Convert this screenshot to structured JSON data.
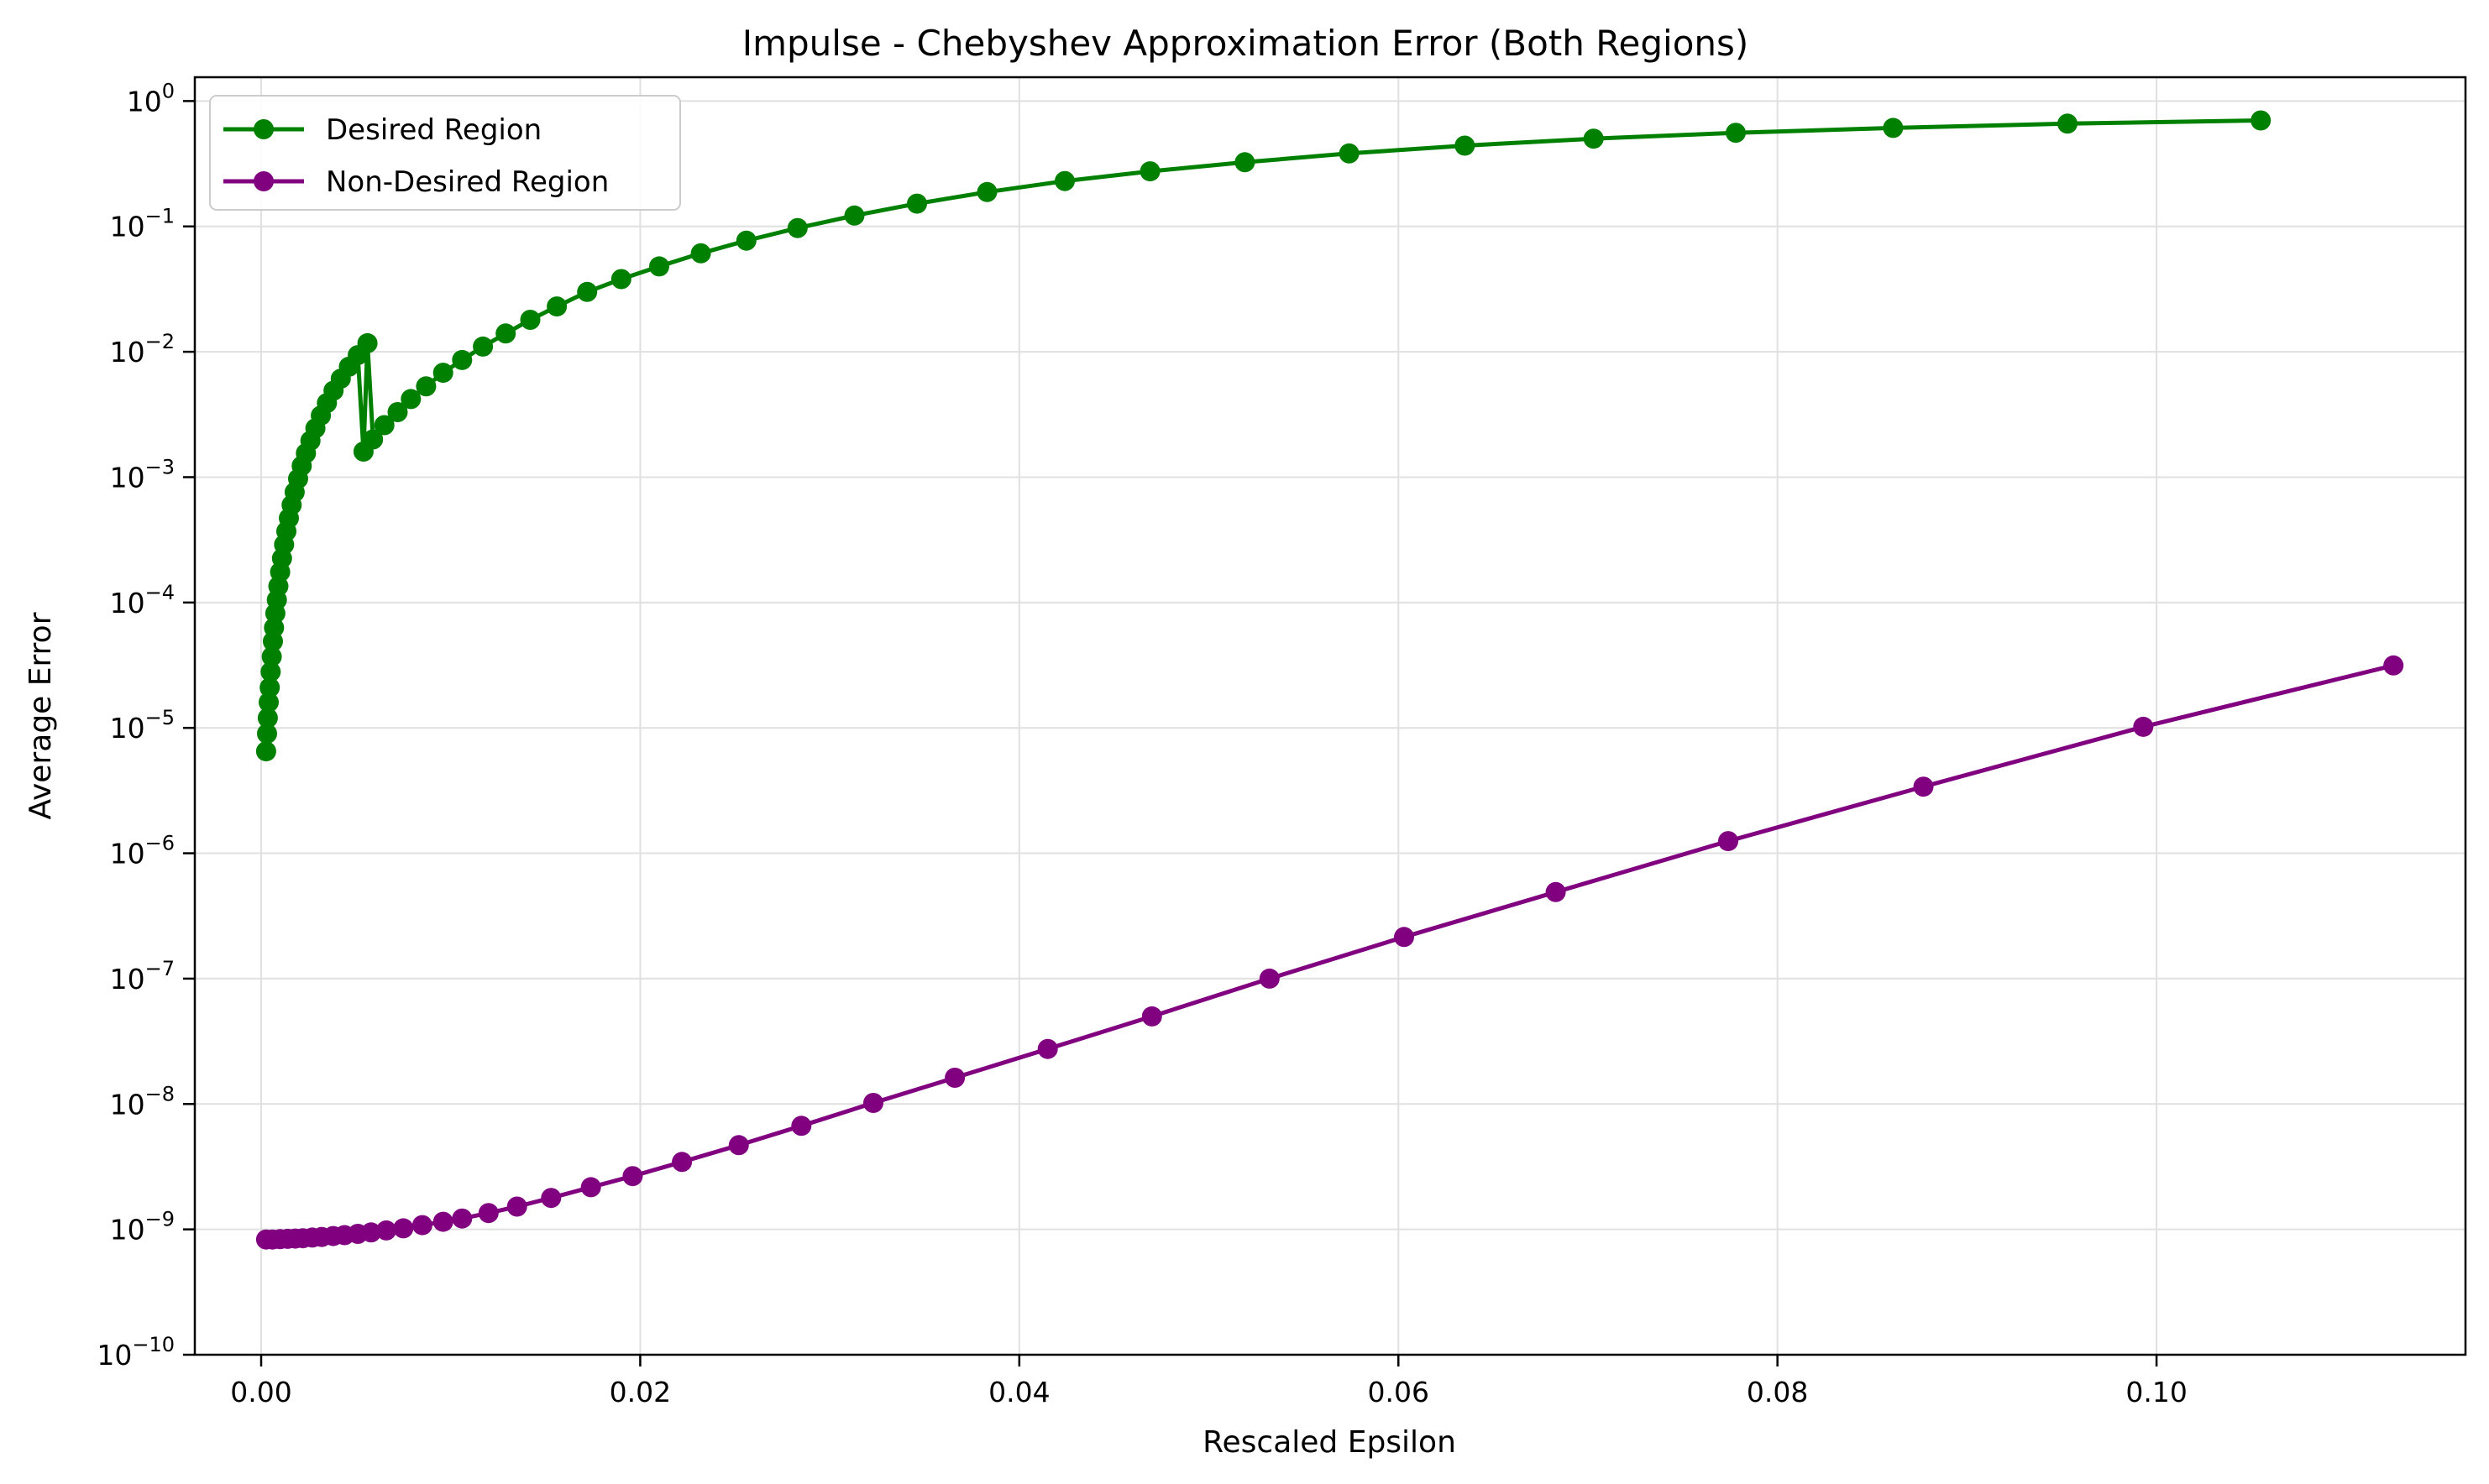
{
  "chart_data": {
    "type": "line",
    "title": "Impulse - Chebyshev Approximation Error (Both Regions)",
    "xlabel": "Rescaled Epsilon",
    "ylabel": "Average Error",
    "xlim": [
      -0.0035,
      0.1163
    ],
    "ylim_exponents": [
      -10,
      0.19
    ],
    "yscale": "log",
    "grid": true,
    "legend_position": "top-left",
    "x_ticks": [
      {
        "value": 0.0,
        "label": "0.00"
      },
      {
        "value": 0.02,
        "label": "0.02"
      },
      {
        "value": 0.04,
        "label": "0.04"
      },
      {
        "value": 0.06,
        "label": "0.06"
      },
      {
        "value": 0.08,
        "label": "0.08"
      },
      {
        "value": 0.1,
        "label": "0.10"
      }
    ],
    "y_ticks": [
      {
        "exp": 0,
        "base": "10",
        "power": "0"
      },
      {
        "exp": -1,
        "base": "10",
        "power": "−1"
      },
      {
        "exp": -2,
        "base": "10",
        "power": "−2"
      },
      {
        "exp": -3,
        "base": "10",
        "power": "−3"
      },
      {
        "exp": -4,
        "base": "10",
        "power": "−4"
      },
      {
        "exp": -5,
        "base": "10",
        "power": "−5"
      },
      {
        "exp": -6,
        "base": "10",
        "power": "−6"
      },
      {
        "exp": -7,
        "base": "10",
        "power": "−7"
      },
      {
        "exp": -8,
        "base": "10",
        "power": "−8"
      },
      {
        "exp": -9,
        "base": "10",
        "power": "−9"
      },
      {
        "exp": -10,
        "base": "10",
        "power": "−10"
      }
    ],
    "series": [
      {
        "name": "Desired Region",
        "color": "#008000",
        "points": [
          [
            0.00026,
            6.5e-06
          ],
          [
            0.00031,
            9e-06
          ],
          [
            0.00035,
            1.2e-05
          ],
          [
            0.0004,
            1.6e-05
          ],
          [
            0.00045,
            2.1e-05
          ],
          [
            0.0005,
            2.8e-05
          ],
          [
            0.00056,
            3.7e-05
          ],
          [
            0.00062,
            4.9e-05
          ],
          [
            0.00068,
            6.3e-05
          ],
          [
            0.00075,
            8.2e-05
          ],
          [
            0.00083,
            0.000105
          ],
          [
            0.00091,
            0.000135
          ],
          [
            0.001,
            0.000175
          ],
          [
            0.0011,
            0.000225
          ],
          [
            0.00121,
            0.00029
          ],
          [
            0.00133,
            0.00037
          ],
          [
            0.00146,
            0.00047
          ],
          [
            0.00161,
            0.0006
          ],
          [
            0.00177,
            0.00076
          ],
          [
            0.00195,
            0.00097
          ],
          [
            0.00214,
            0.00123
          ],
          [
            0.00236,
            0.00155
          ],
          [
            0.0026,
            0.00195
          ],
          [
            0.00286,
            0.00245
          ],
          [
            0.00315,
            0.0031
          ],
          [
            0.00347,
            0.0039
          ],
          [
            0.00382,
            0.0049
          ],
          [
            0.0042,
            0.0061
          ],
          [
            0.00463,
            0.0076
          ],
          [
            0.0051,
            0.0094
          ],
          [
            0.00561,
            0.0117
          ],
          [
            0.0054,
            0.0016
          ],
          [
            0.0059,
            0.002
          ],
          [
            0.0065,
            0.0026
          ],
          [
            0.0072,
            0.0033
          ],
          [
            0.0079,
            0.0042
          ],
          [
            0.0087,
            0.0053
          ],
          [
            0.0096,
            0.0068
          ],
          [
            0.0106,
            0.0086
          ],
          [
            0.0117,
            0.011
          ],
          [
            0.0129,
            0.014
          ],
          [
            0.0142,
            0.018
          ],
          [
            0.0156,
            0.023
          ],
          [
            0.0172,
            0.03
          ],
          [
            0.019,
            0.038
          ],
          [
            0.021,
            0.048
          ],
          [
            0.0232,
            0.061
          ],
          [
            0.0256,
            0.077
          ],
          [
            0.0283,
            0.097
          ],
          [
            0.0313,
            0.122
          ],
          [
            0.0346,
            0.152
          ],
          [
            0.0383,
            0.188
          ],
          [
            0.0424,
            0.23
          ],
          [
            0.0469,
            0.275
          ],
          [
            0.0519,
            0.325
          ],
          [
            0.0574,
            0.382
          ],
          [
            0.0635,
            0.441
          ],
          [
            0.0703,
            0.501
          ],
          [
            0.0778,
            0.558
          ],
          [
            0.0861,
            0.61
          ],
          [
            0.0953,
            0.66
          ],
          [
            0.1055,
            0.7
          ]
        ]
      },
      {
        "name": "Non-Desired Region",
        "color": "#800080",
        "points": [
          [
            0.00026,
            8.3e-10
          ],
          [
            0.0006,
            8.3e-10
          ],
          [
            0.001,
            8.35e-10
          ],
          [
            0.0014,
            8.4e-10
          ],
          [
            0.0018,
            8.45e-10
          ],
          [
            0.0022,
            8.5e-10
          ],
          [
            0.0027,
            8.6e-10
          ],
          [
            0.0032,
            8.7e-10
          ],
          [
            0.0038,
            8.85e-10
          ],
          [
            0.0044,
            9e-10
          ],
          [
            0.0051,
            9.2e-10
          ],
          [
            0.0058,
            9.45e-10
          ],
          [
            0.0066,
            9.8e-10
          ],
          [
            0.0075,
            1.02e-09
          ],
          [
            0.0085,
            1.08e-09
          ],
          [
            0.0096,
            1.15e-09
          ],
          [
            0.0106,
            1.22e-09
          ],
          [
            0.012,
            1.35e-09
          ],
          [
            0.0135,
            1.52e-09
          ],
          [
            0.0153,
            1.78e-09
          ],
          [
            0.0174,
            2.17e-09
          ],
          [
            0.0196,
            2.66e-09
          ],
          [
            0.0222,
            3.45e-09
          ],
          [
            0.0252,
            4.7e-09
          ],
          [
            0.0285,
            6.7e-09
          ],
          [
            0.0323,
            1.02e-08
          ],
          [
            0.0366,
            1.62e-08
          ],
          [
            0.0415,
            2.75e-08
          ],
          [
            0.047,
            5e-08
          ],
          [
            0.0532,
            1e-07
          ],
          [
            0.0603,
            2.15e-07
          ],
          [
            0.0683,
            4.9e-07
          ],
          [
            0.0774,
            1.25e-06
          ],
          [
            0.0877,
            3.4e-06
          ],
          [
            0.0993,
            1.02e-05
          ],
          [
            0.1125,
            3.15e-05
          ]
        ]
      }
    ]
  }
}
